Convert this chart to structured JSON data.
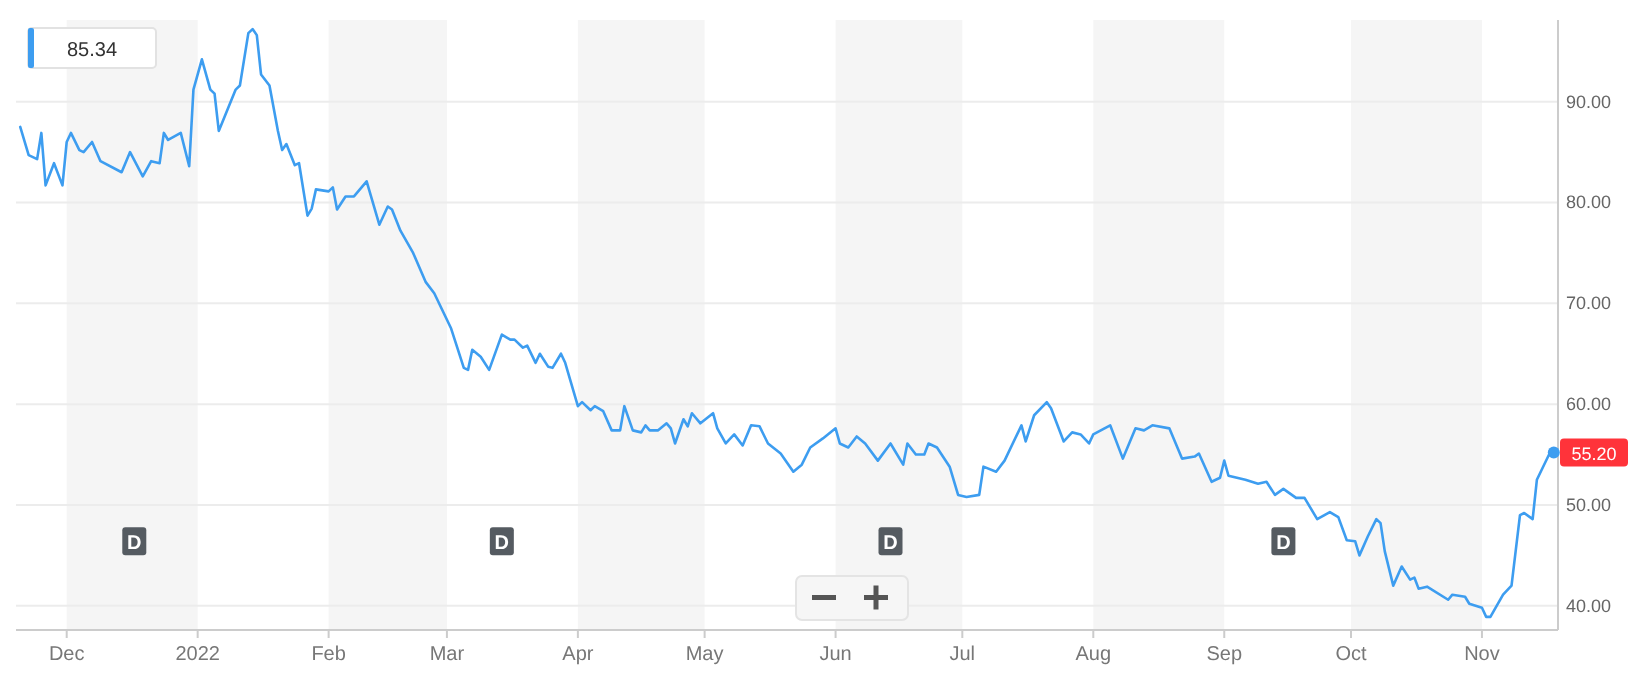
{
  "chart_data": {
    "type": "line",
    "x": [
      "2021-11-20",
      "2021-11-22",
      "2021-11-24",
      "2021-11-25",
      "2021-11-26",
      "2021-11-28",
      "2021-11-30",
      "2021-12-01",
      "2021-12-02",
      "2021-12-04",
      "2021-12-05",
      "2021-12-07",
      "2021-12-09",
      "2021-12-14",
      "2021-12-16",
      "2021-12-19",
      "2021-12-21",
      "2021-12-23",
      "2021-12-24",
      "2021-12-25",
      "2021-12-28",
      "2021-12-30",
      "2021-12-31",
      "2022-01-02",
      "2022-01-04",
      "2022-01-05",
      "2022-01-06",
      "2022-01-10",
      "2022-01-11",
      "2022-01-13",
      "2022-01-14",
      "2022-01-15",
      "2022-01-16",
      "2022-01-18",
      "2022-01-20",
      "2022-01-21",
      "2022-01-22",
      "2022-01-24",
      "2022-01-25",
      "2022-01-27",
      "2022-01-28",
      "2022-01-29",
      "2022-02-01",
      "2022-02-02",
      "2022-02-03",
      "2022-02-05",
      "2022-02-07",
      "2022-02-10",
      "2022-02-13",
      "2022-02-15",
      "2022-02-16",
      "2022-02-18",
      "2022-02-21",
      "2022-02-24",
      "2022-02-26",
      "2022-03-02",
      "2022-03-05",
      "2022-03-06",
      "2022-03-07",
      "2022-03-09",
      "2022-03-11",
      "2022-03-14",
      "2022-03-16",
      "2022-03-17",
      "2022-03-19",
      "2022-03-20",
      "2022-03-22",
      "2022-03-23",
      "2022-03-25",
      "2022-03-26",
      "2022-03-28",
      "2022-03-29",
      "2022-04-01",
      "2022-04-02",
      "2022-04-04",
      "2022-04-05",
      "2022-04-07",
      "2022-04-09",
      "2022-04-11",
      "2022-04-12",
      "2022-04-14",
      "2022-04-16",
      "2022-04-17",
      "2022-04-18",
      "2022-04-20",
      "2022-04-22",
      "2022-04-23",
      "2022-04-24",
      "2022-04-26",
      "2022-04-27",
      "2022-04-28",
      "2022-04-30",
      "2022-05-03",
      "2022-05-04",
      "2022-05-06",
      "2022-05-08",
      "2022-05-10",
      "2022-05-12",
      "2022-05-14",
      "2022-05-16",
      "2022-05-19",
      "2022-05-22",
      "2022-05-24",
      "2022-05-26",
      "2022-05-29",
      "2022-06-01",
      "2022-06-02",
      "2022-06-04",
      "2022-06-06",
      "2022-06-08",
      "2022-06-11",
      "2022-06-14",
      "2022-06-17",
      "2022-06-18",
      "2022-06-20",
      "2022-06-22",
      "2022-06-23",
      "2022-06-25",
      "2022-06-28",
      "2022-06-30",
      "2022-07-02",
      "2022-07-05",
      "2022-07-06",
      "2022-07-09",
      "2022-07-11",
      "2022-07-15",
      "2022-07-16",
      "2022-07-18",
      "2022-07-21",
      "2022-07-22",
      "2022-07-25",
      "2022-07-27",
      "2022-07-29",
      "2022-07-31",
      "2022-08-01",
      "2022-08-05",
      "2022-08-08",
      "2022-08-11",
      "2022-08-13",
      "2022-08-15",
      "2022-08-19",
      "2022-08-22",
      "2022-08-25",
      "2022-08-26",
      "2022-08-29",
      "2022-08-31",
      "2022-09-01",
      "2022-09-02",
      "2022-09-06",
      "2022-09-09",
      "2022-09-11",
      "2022-09-13",
      "2022-09-15",
      "2022-09-18",
      "2022-09-20",
      "2022-09-23",
      "2022-09-26",
      "2022-09-28",
      "2022-09-30",
      "2022-10-02",
      "2022-10-03",
      "2022-10-05",
      "2022-10-07",
      "2022-10-08",
      "2022-10-09",
      "2022-10-11",
      "2022-10-13",
      "2022-10-15",
      "2022-10-16",
      "2022-10-17",
      "2022-10-19",
      "2022-10-24",
      "2022-10-25",
      "2022-10-28",
      "2022-10-29",
      "2022-11-01",
      "2022-11-02",
      "2022-11-03",
      "2022-11-06",
      "2022-11-08",
      "2022-11-10",
      "2022-11-11",
      "2022-11-13",
      "2022-11-14",
      "2022-11-17",
      "2022-11-18"
    ],
    "series": [
      {
        "color": "#3d9df0",
        "values": [
          87.5,
          84.7,
          84.3,
          86.9,
          81.7,
          83.9,
          81.7,
          86.0,
          86.9,
          85.2,
          85.0,
          86.0,
          84.1,
          83.0,
          85.0,
          82.6,
          84.1,
          83.9,
          86.9,
          86.2,
          86.9,
          83.6,
          91.2,
          94.2,
          91.2,
          90.8,
          87.1,
          91.2,
          91.6,
          96.8,
          97.2,
          96.6,
          92.7,
          91.6,
          87.1,
          85.2,
          85.8,
          83.7,
          83.9,
          78.7,
          79.4,
          81.3,
          81.1,
          81.5,
          79.3,
          80.6,
          80.6,
          82.1,
          77.8,
          79.6,
          79.3,
          77.2,
          75.0,
          72.1,
          71.0,
          67.5,
          63.6,
          63.4,
          65.4,
          64.7,
          63.4,
          66.9,
          66.4,
          66.4,
          65.6,
          65.8,
          64.1,
          65.0,
          63.7,
          63.6,
          65.0,
          64.1,
          59.8,
          60.2,
          59.4,
          59.8,
          59.3,
          57.4,
          57.4,
          59.8,
          57.4,
          57.2,
          57.9,
          57.4,
          57.4,
          58.1,
          57.6,
          56.1,
          58.5,
          57.8,
          59.1,
          58.1,
          59.1,
          57.6,
          56.1,
          57.0,
          55.9,
          57.9,
          57.8,
          56.1,
          55.1,
          53.3,
          54.0,
          55.7,
          56.6,
          57.6,
          56.1,
          55.7,
          56.8,
          56.1,
          54.4,
          56.1,
          54.0,
          56.1,
          55.0,
          55.0,
          56.1,
          55.7,
          53.8,
          51.0,
          50.8,
          51.0,
          53.8,
          53.3,
          54.4,
          57.9,
          56.3,
          58.9,
          60.2,
          59.6,
          56.3,
          57.2,
          57.0,
          56.1,
          57.0,
          57.9,
          54.6,
          57.6,
          57.4,
          57.9,
          57.6,
          54.6,
          54.8,
          55.1,
          52.3,
          52.7,
          54.4,
          52.9,
          52.5,
          52.1,
          52.3,
          51.0,
          51.6,
          50.7,
          50.7,
          48.6,
          49.3,
          48.8,
          46.5,
          46.4,
          45.0,
          46.9,
          48.6,
          48.2,
          45.4,
          42.0,
          43.9,
          42.6,
          42.8,
          41.7,
          41.9,
          40.6,
          41.1,
          40.9,
          40.2,
          39.8,
          38.9,
          38.9,
          41.1,
          42.0,
          49.0,
          49.2,
          48.6,
          52.5,
          55.1,
          55.2
        ]
      }
    ],
    "xlim": [
      "2021-11-19",
      "2022-11-19"
    ],
    "ylim": [
      37.6,
      98.1
    ],
    "xticks": [
      {
        "value": "2021-12-01",
        "label": "Dec"
      },
      {
        "value": "2022-01-01",
        "label": "2022"
      },
      {
        "value": "2022-02-01",
        "label": "Feb"
      },
      {
        "value": "2022-03-01",
        "label": "Mar"
      },
      {
        "value": "2022-04-01",
        "label": "Apr"
      },
      {
        "value": "2022-05-01",
        "label": "May"
      },
      {
        "value": "2022-06-01",
        "label": "Jun"
      },
      {
        "value": "2022-07-01",
        "label": "Jul"
      },
      {
        "value": "2022-08-01",
        "label": "Aug"
      },
      {
        "value": "2022-09-01",
        "label": "Sep"
      },
      {
        "value": "2022-10-01",
        "label": "Oct"
      },
      {
        "value": "2022-11-01",
        "label": "Nov"
      }
    ],
    "yticks": [
      {
        "value": 40,
        "label": "40.00"
      },
      {
        "value": 50,
        "label": "50.00"
      },
      {
        "value": 60,
        "label": "60.00"
      },
      {
        "value": 70,
        "label": "70.00"
      },
      {
        "value": 80,
        "label": "80.00"
      },
      {
        "value": 90,
        "label": "90.00"
      }
    ],
    "grid": "y",
    "bands": [
      {
        "axis": "x",
        "from": "2021-12-01",
        "to": "2022-01-01",
        "color": "#f5f5f5"
      },
      {
        "axis": "x",
        "from": "2022-02-01",
        "to": "2022-03-01",
        "color": "#f5f5f5"
      },
      {
        "axis": "x",
        "from": "2022-04-01",
        "to": "2022-05-01",
        "color": "#f5f5f5"
      },
      {
        "axis": "x",
        "from": "2022-06-01",
        "to": "2022-07-01",
        "color": "#f5f5f5"
      },
      {
        "axis": "x",
        "from": "2022-08-01",
        "to": "2022-09-01",
        "color": "#f5f5f5"
      },
      {
        "axis": "x",
        "from": "2022-10-01",
        "to": "2022-11-01",
        "color": "#f5f5f5"
      }
    ],
    "annotations": [
      "85.34",
      {
        "text": "D",
        "x": "2021-12-17",
        "y": 46.4
      },
      {
        "text": "D",
        "x": "2022-03-14",
        "y": 46.4
      },
      {
        "text": "D",
        "x": "2022-06-14",
        "y": 46.4
      },
      {
        "text": "D",
        "x": "2022-09-15",
        "y": 46.4
      },
      {
        "text": "55.20",
        "x": "2022-11-18",
        "y": 55.2
      }
    ]
  }
}
